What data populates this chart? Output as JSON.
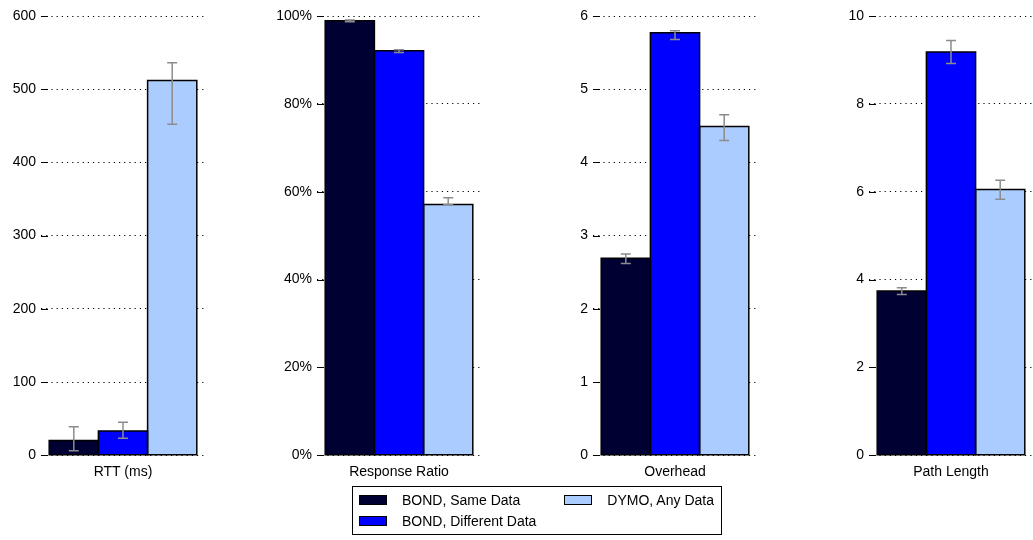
{
  "chart_data": [
    {
      "type": "bar",
      "categories": [
        null
      ],
      "xlabel": "RTT (ms)",
      "series": [
        {
          "name": "BOND, Same Data",
          "color": "#000033",
          "values": [
            20
          ],
          "errors": [
            [
              6,
              39
            ]
          ]
        },
        {
          "name": "BOND, Different Data",
          "color": "#0000ff",
          "values": [
            33
          ],
          "errors": [
            [
              23,
              45
            ]
          ]
        },
        {
          "name": "DYMO, Any Data",
          "color": "#aaccff",
          "values": [
            512
          ],
          "errors": [
            [
              452,
              536
            ]
          ]
        }
      ],
      "ylim": [
        0,
        600
      ],
      "yticks": [
        0,
        100,
        200,
        300,
        400,
        500,
        600
      ],
      "grid": "y",
      "legend": "bottom"
    },
    {
      "type": "bar",
      "categories": [
        null
      ],
      "xlabel": "Response Ratio",
      "series": [
        {
          "color": "#000033",
          "values": [
            98.9
          ],
          "errors": [
            [
              98.7,
              99.1
            ]
          ]
        },
        {
          "color": "#0000ff",
          "values": [
            92.1
          ],
          "errors": [
            [
              91.7,
              92.3
            ]
          ]
        },
        {
          "color": "#aaccff",
          "values": [
            57.1
          ],
          "errors": [
            [
              57.0,
              58.6
            ]
          ]
        }
      ],
      "ylim": [
        0,
        100
      ],
      "yticks": [
        {
          "value": 0,
          "label": "0%"
        },
        {
          "value": 20,
          "label": "20%"
        },
        {
          "value": 40,
          "label": "40%"
        },
        {
          "value": 60,
          "label": "60%"
        },
        {
          "value": 80,
          "label": "80%"
        },
        {
          "value": 100,
          "label": "100%"
        }
      ],
      "grid": "y"
    },
    {
      "type": "bar",
      "categories": [
        null
      ],
      "xlabel": "Overhead",
      "series": [
        {
          "color": "#000033",
          "values": [
            2.69
          ],
          "errors": [
            [
              2.62,
              2.75
            ]
          ]
        },
        {
          "color": "#0000ff",
          "values": [
            5.77
          ],
          "errors": [
            [
              5.68,
              5.8
            ]
          ]
        },
        {
          "color": "#aaccff",
          "values": [
            4.49
          ],
          "errors": [
            [
              4.3,
              4.65
            ]
          ]
        }
      ],
      "ylim": [
        0,
        6
      ],
      "yticks": [
        0,
        1,
        2,
        3,
        4,
        5,
        6
      ],
      "grid": "y"
    },
    {
      "type": "bar",
      "categories": [
        null
      ],
      "xlabel": "Path Length",
      "series": [
        {
          "color": "#000033",
          "values": [
            3.74
          ],
          "errors": [
            [
              3.66,
              3.81
            ]
          ]
        },
        {
          "color": "#0000ff",
          "values": [
            9.18
          ],
          "errors": [
            [
              8.92,
              9.44
            ]
          ]
        },
        {
          "color": "#aaccff",
          "values": [
            6.05
          ],
          "errors": [
            [
              5.83,
              6.26
            ]
          ]
        }
      ],
      "ylim": [
        0,
        10
      ],
      "yticks": [
        0,
        2,
        4,
        6,
        8,
        10
      ],
      "grid": "y"
    }
  ]
}
